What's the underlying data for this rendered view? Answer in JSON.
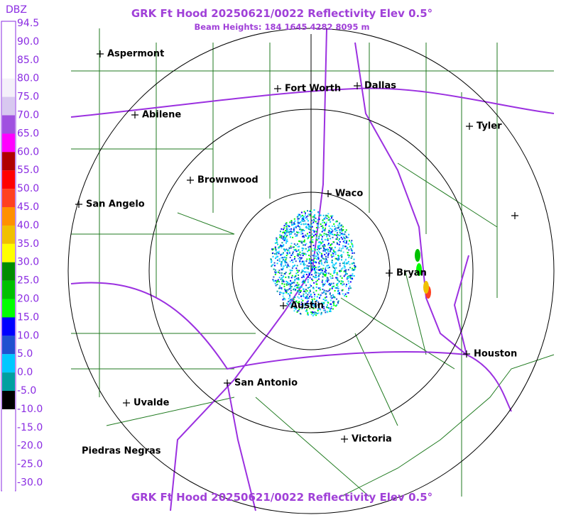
{
  "title": "GRK Ft Hood 20250621/0022 Reflectivity Elev 0.5°",
  "subtitle": "Beam Heights: 184 1645 4282 8095 m",
  "footer_title": "GRK Ft Hood 20250621/0022 Reflectivity Elev 0.5°",
  "legend": {
    "unit": "DBZ",
    "levels": [
      {
        "label": "94.5",
        "color": "#ffffff"
      },
      {
        "label": "90.0",
        "color": "#ffffff"
      },
      {
        "label": "85.0",
        "color": "#ffffff"
      },
      {
        "label": "80.0",
        "color": "#f4f0fa"
      },
      {
        "label": "75.0",
        "color": "#d8c8f0"
      },
      {
        "label": "70.0",
        "color": "#a050e0"
      },
      {
        "label": "65.0",
        "color": "#ff00ff"
      },
      {
        "label": "60.0",
        "color": "#b00000"
      },
      {
        "label": "55.0",
        "color": "#ff0000"
      },
      {
        "label": "50.0",
        "color": "#ff4020"
      },
      {
        "label": "45.0",
        "color": "#ff9000"
      },
      {
        "label": "40.0",
        "color": "#f0c000"
      },
      {
        "label": "35.0",
        "color": "#ffff00"
      },
      {
        "label": "30.0",
        "color": "#008c00"
      },
      {
        "label": "25.0",
        "color": "#00c000"
      },
      {
        "label": "20.0",
        "color": "#00ff00"
      },
      {
        "label": "15.0",
        "color": "#0000ff"
      },
      {
        "label": "10.0",
        "color": "#2050d0"
      },
      {
        "label": "5.0",
        "color": "#00c8ff"
      },
      {
        "label": "0.0",
        "color": "#00a0a0"
      },
      {
        "label": "-5.0",
        "color": "#000000"
      },
      {
        "label": "-10.0",
        "color": "#ffffff"
      },
      {
        "label": "-15.0",
        "color": "#ffffff"
      },
      {
        "label": "-20.0",
        "color": "#ffffff"
      },
      {
        "label": "-25.0",
        "color": "#ffffff"
      },
      {
        "label": "-30.0",
        "color": "#ffffff"
      }
    ]
  },
  "cities": [
    {
      "name": "Aspermont"
    },
    {
      "name": "Abilene"
    },
    {
      "name": "Fort Worth"
    },
    {
      "name": "Dallas"
    },
    {
      "name": "Tyler"
    },
    {
      "name": "Brownwood"
    },
    {
      "name": "Waco"
    },
    {
      "name": "San Angelo"
    },
    {
      "name": "Bryan"
    },
    {
      "name": "Austin"
    },
    {
      "name": "Houston"
    },
    {
      "name": "San Antonio"
    },
    {
      "name": "Uvalde"
    },
    {
      "name": "Victoria"
    },
    {
      "name": "Piedras Negras"
    }
  ]
}
